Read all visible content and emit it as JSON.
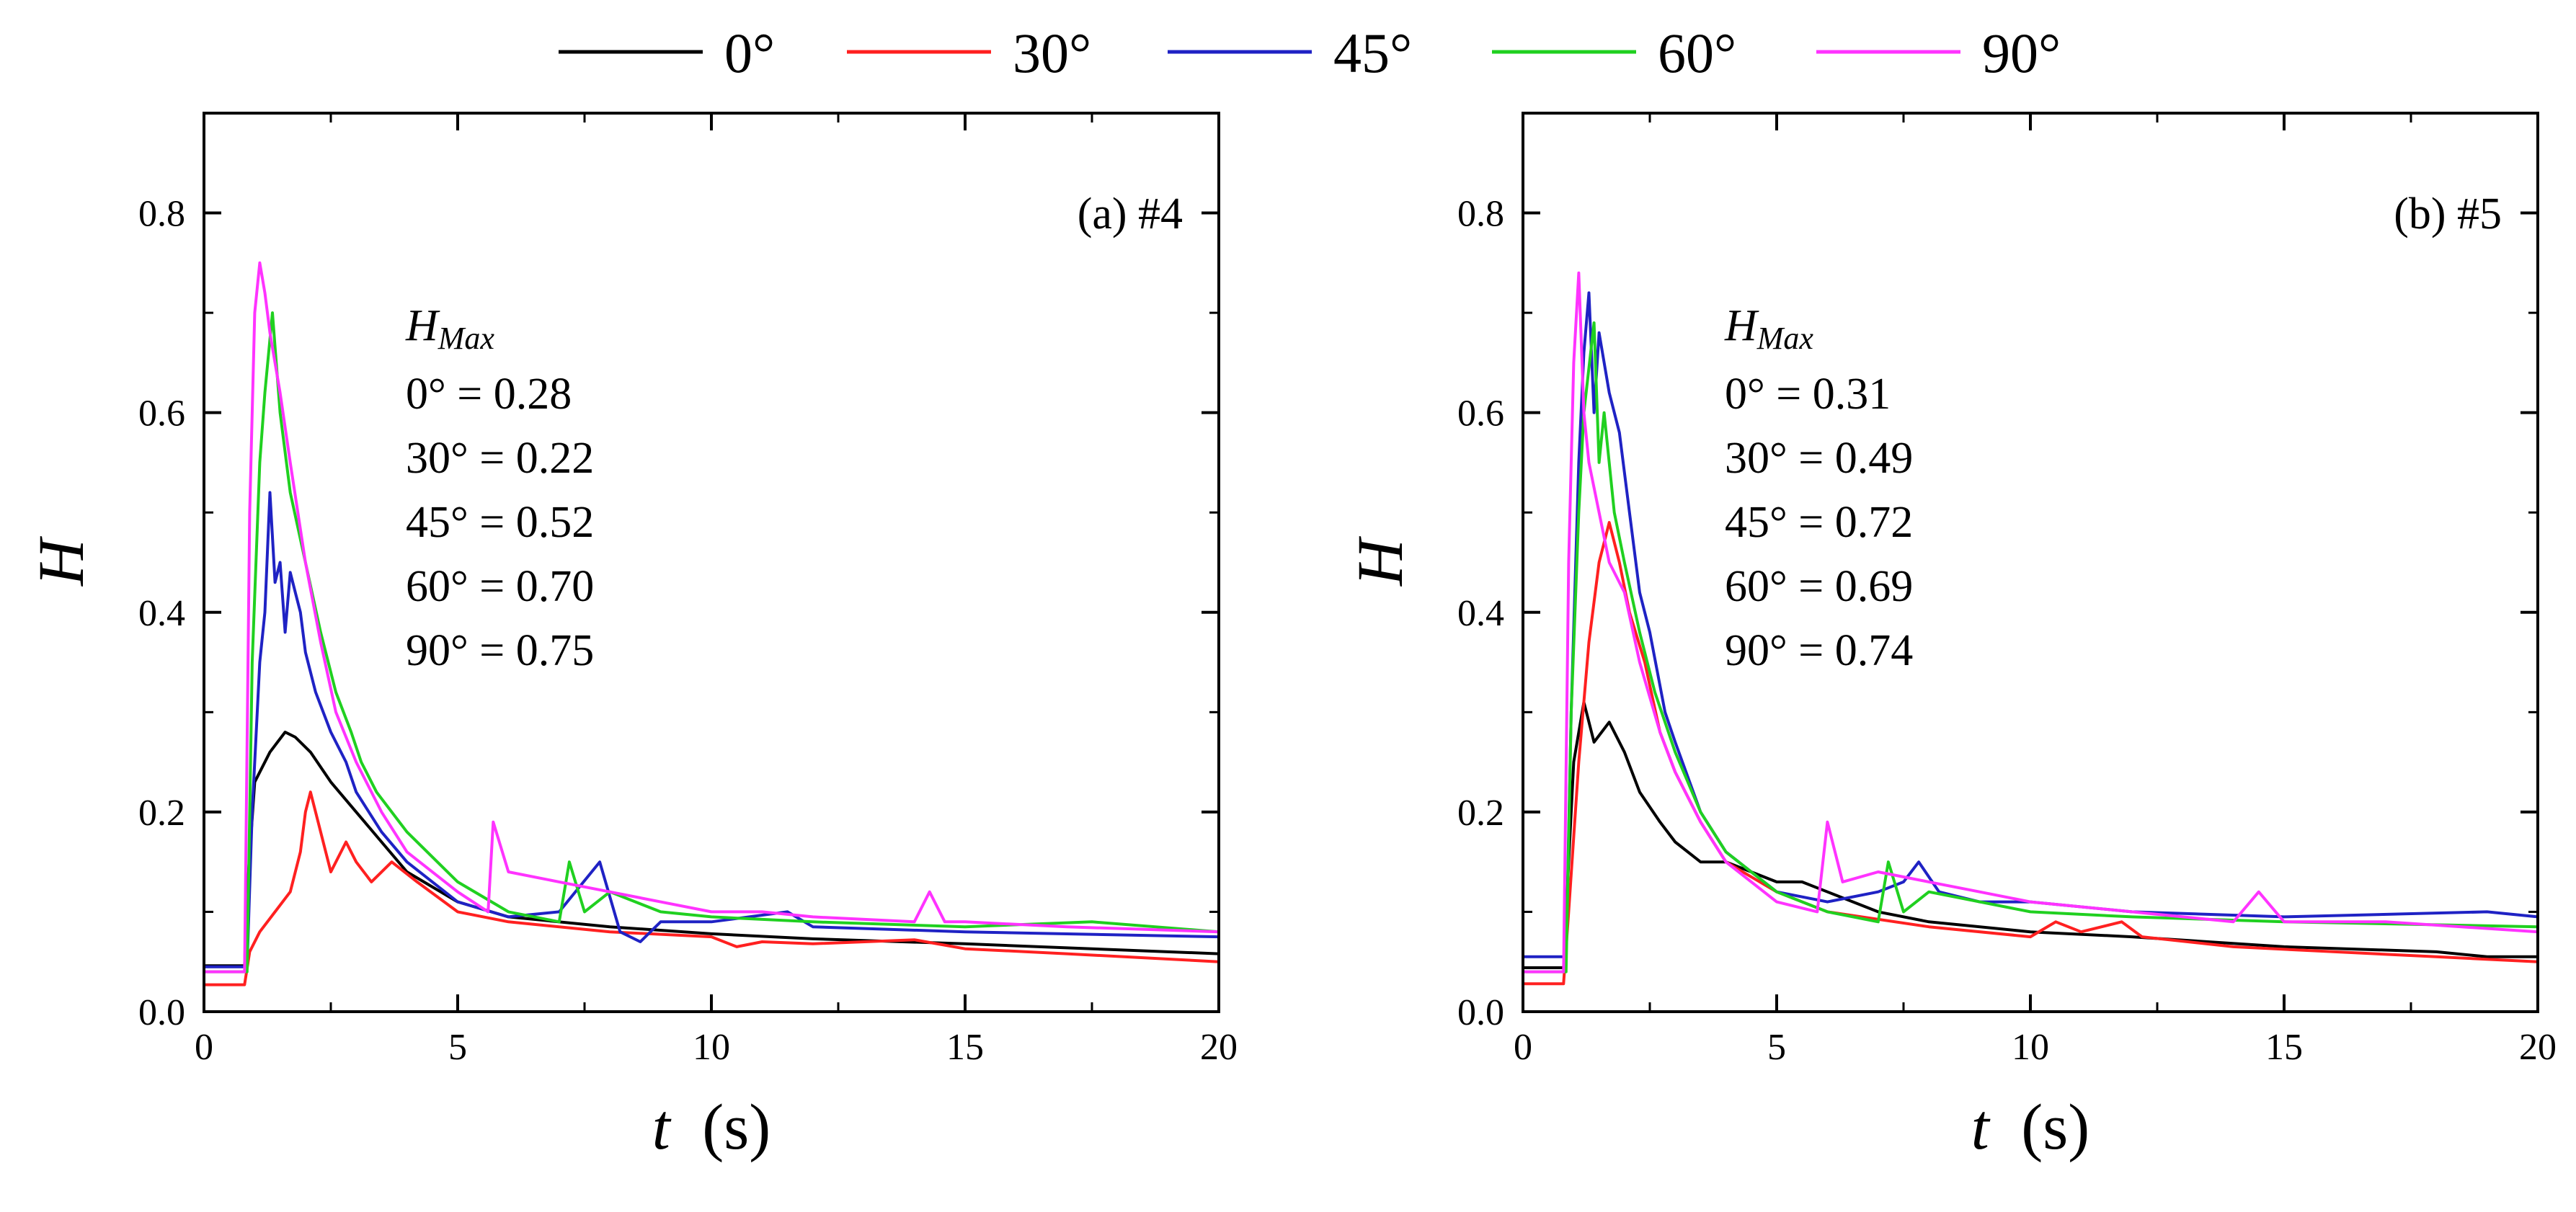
{
  "legend": [
    {
      "label": "0°",
      "color": "#000000"
    },
    {
      "label": "30°",
      "color": "#ff2020"
    },
    {
      "label": "45°",
      "color": "#1f22c4"
    },
    {
      "label": "60°",
      "color": "#20d020"
    },
    {
      "label": "90°",
      "color": "#ff33ff"
    }
  ],
  "chart_data": [
    {
      "type": "line",
      "panel_label": "(a) #4",
      "xlabel_var": "t",
      "xlabel_unit": "(s)",
      "ylabel": "H",
      "xlim": [
        0,
        20
      ],
      "ylim": [
        0,
        0.9
      ],
      "x_ticks": [
        "0",
        "5",
        "10",
        "15",
        "20"
      ],
      "y_ticks": [
        "0.0",
        "0.2",
        "0.4",
        "0.6",
        "0.8"
      ],
      "annotation_title": "H",
      "annotation_sub": "Max",
      "annotation_lines": [
        "0° = 0.28",
        "30° = 0.22",
        "45° = 0.52",
        "60° = 0.70",
        "90° = 0.75"
      ],
      "series": [
        {
          "name": "0°",
          "x": [
            0,
            0.8,
            0.85,
            1.0,
            1.3,
            1.6,
            1.8,
            2.1,
            2.5,
            3.0,
            3.5,
            4.0,
            5,
            6,
            8,
            10,
            12,
            15,
            18,
            20
          ],
          "y": [
            0.046,
            0.046,
            0.12,
            0.23,
            0.26,
            0.28,
            0.275,
            0.26,
            0.23,
            0.2,
            0.17,
            0.14,
            0.11,
            0.095,
            0.085,
            0.078,
            0.073,
            0.068,
            0.062,
            0.058
          ]
        },
        {
          "name": "30°",
          "x": [
            0,
            0.8,
            0.9,
            1.1,
            1.4,
            1.7,
            1.9,
            2.0,
            2.1,
            2.3,
            2.5,
            2.8,
            3.0,
            3.3,
            3.7,
            4.2,
            5,
            6,
            8,
            10,
            10.5,
            11,
            12,
            14,
            15,
            17,
            20
          ],
          "y": [
            0.027,
            0.027,
            0.06,
            0.08,
            0.1,
            0.12,
            0.16,
            0.2,
            0.22,
            0.18,
            0.14,
            0.17,
            0.15,
            0.13,
            0.15,
            0.13,
            0.1,
            0.09,
            0.08,
            0.075,
            0.065,
            0.07,
            0.068,
            0.072,
            0.063,
            0.058,
            0.05
          ]
        },
        {
          "name": "45°",
          "x": [
            0,
            0.85,
            0.95,
            1.1,
            1.2,
            1.3,
            1.4,
            1.5,
            1.6,
            1.7,
            1.8,
            1.9,
            2.0,
            2.2,
            2.5,
            2.8,
            3.0,
            3.5,
            4.0,
            5,
            6,
            7,
            7.8,
            8.2,
            8.6,
            9.0,
            10,
            11.5,
            12,
            15,
            20
          ],
          "y": [
            0.045,
            0.045,
            0.2,
            0.35,
            0.4,
            0.52,
            0.43,
            0.45,
            0.38,
            0.44,
            0.42,
            0.4,
            0.36,
            0.32,
            0.28,
            0.25,
            0.22,
            0.18,
            0.15,
            0.11,
            0.095,
            0.1,
            0.15,
            0.08,
            0.07,
            0.09,
            0.09,
            0.1,
            0.085,
            0.08,
            0.075
          ]
        },
        {
          "name": "60°",
          "x": [
            0,
            0.85,
            0.95,
            1.1,
            1.2,
            1.35,
            1.5,
            1.7,
            2.0,
            2.3,
            2.6,
            2.9,
            3.1,
            3.4,
            4.0,
            5,
            6,
            7,
            7.2,
            7.5,
            8,
            9,
            10,
            12,
            15,
            17.5,
            20
          ],
          "y": [
            0.04,
            0.04,
            0.35,
            0.55,
            0.62,
            0.7,
            0.6,
            0.52,
            0.45,
            0.38,
            0.32,
            0.28,
            0.25,
            0.22,
            0.18,
            0.13,
            0.1,
            0.09,
            0.15,
            0.1,
            0.12,
            0.1,
            0.095,
            0.09,
            0.085,
            0.09,
            0.08
          ]
        },
        {
          "name": "90°",
          "x": [
            0,
            0.8,
            0.9,
            1.0,
            1.1,
            1.2,
            1.3,
            1.5,
            1.7,
            2.0,
            2.3,
            2.6,
            3.0,
            3.5,
            4.0,
            5,
            5.6,
            5.7,
            6.0,
            7,
            8,
            9,
            10,
            11,
            12,
            14,
            14.3,
            14.6,
            15,
            17,
            20
          ],
          "y": [
            0.04,
            0.04,
            0.5,
            0.7,
            0.75,
            0.72,
            0.68,
            0.62,
            0.55,
            0.45,
            0.37,
            0.3,
            0.25,
            0.2,
            0.16,
            0.12,
            0.1,
            0.19,
            0.14,
            0.13,
            0.12,
            0.11,
            0.1,
            0.1,
            0.095,
            0.09,
            0.12,
            0.09,
            0.09,
            0.085,
            0.08
          ]
        }
      ]
    },
    {
      "type": "line",
      "panel_label": "(b) #5",
      "xlabel_var": "t",
      "xlabel_unit": "(s)",
      "ylabel": "H",
      "xlim": [
        0,
        20
      ],
      "ylim": [
        0,
        0.9
      ],
      "x_ticks": [
        "0",
        "5",
        "10",
        "15",
        "20"
      ],
      "y_ticks": [
        "0.0",
        "0.2",
        "0.4",
        "0.6",
        "0.8"
      ],
      "annotation_title": "H",
      "annotation_sub": "Max",
      "annotation_lines": [
        "0° = 0.31",
        "30° = 0.49",
        "45° = 0.72",
        "60° = 0.69",
        "90° = 0.74"
      ],
      "series": [
        {
          "name": "0°",
          "x": [
            0,
            0.8,
            0.9,
            1.0,
            1.2,
            1.4,
            1.7,
            2.0,
            2.3,
            2.7,
            3.0,
            3.5,
            4.0,
            5,
            5.5,
            6,
            7,
            8,
            10,
            12,
            15,
            18,
            19,
            20
          ],
          "y": [
            0.044,
            0.044,
            0.15,
            0.25,
            0.31,
            0.27,
            0.29,
            0.26,
            0.22,
            0.19,
            0.17,
            0.15,
            0.15,
            0.13,
            0.13,
            0.12,
            0.1,
            0.09,
            0.08,
            0.075,
            0.065,
            0.06,
            0.055,
            0.055
          ]
        },
        {
          "name": "30°",
          "x": [
            0,
            0.8,
            0.9,
            1.1,
            1.3,
            1.5,
            1.7,
            1.9,
            2.1,
            2.4,
            2.7,
            3.0,
            3.5,
            4.0,
            5,
            6,
            8,
            10,
            10.5,
            11,
            11.8,
            12.2,
            14,
            16,
            18,
            20
          ],
          "y": [
            0.028,
            0.028,
            0.1,
            0.25,
            0.37,
            0.45,
            0.49,
            0.45,
            0.4,
            0.35,
            0.28,
            0.24,
            0.19,
            0.15,
            0.12,
            0.1,
            0.085,
            0.075,
            0.09,
            0.08,
            0.09,
            0.075,
            0.065,
            0.06,
            0.055,
            0.05
          ]
        },
        {
          "name": "45°",
          "x": [
            0,
            0.85,
            0.95,
            1.1,
            1.2,
            1.3,
            1.4,
            1.5,
            1.7,
            1.9,
            2.1,
            2.3,
            2.5,
            2.8,
            3.0,
            3.5,
            4.0,
            5,
            6,
            7,
            7.5,
            7.8,
            8.2,
            9,
            10,
            12,
            15,
            19,
            20
          ],
          "y": [
            0.055,
            0.055,
            0.3,
            0.55,
            0.66,
            0.72,
            0.6,
            0.68,
            0.62,
            0.58,
            0.5,
            0.42,
            0.38,
            0.3,
            0.27,
            0.2,
            0.16,
            0.12,
            0.11,
            0.12,
            0.13,
            0.15,
            0.12,
            0.11,
            0.11,
            0.1,
            0.095,
            0.1,
            0.095
          ]
        },
        {
          "name": "60°",
          "x": [
            0,
            0.85,
            0.95,
            1.1,
            1.2,
            1.4,
            1.5,
            1.6,
            1.8,
            2.0,
            2.3,
            2.6,
            3.0,
            3.5,
            4.0,
            5,
            6,
            7,
            7.2,
            7.5,
            8,
            9,
            10,
            12,
            15,
            20
          ],
          "y": [
            0.04,
            0.04,
            0.3,
            0.5,
            0.6,
            0.69,
            0.55,
            0.6,
            0.5,
            0.45,
            0.38,
            0.32,
            0.26,
            0.2,
            0.16,
            0.12,
            0.1,
            0.09,
            0.15,
            0.1,
            0.12,
            0.11,
            0.1,
            0.095,
            0.09,
            0.085
          ]
        },
        {
          "name": "90°",
          "x": [
            0,
            0.8,
            0.9,
            1.0,
            1.1,
            1.2,
            1.3,
            1.5,
            1.7,
            2.0,
            2.3,
            2.7,
            3.0,
            3.5,
            4.0,
            5,
            5.8,
            6.0,
            6.3,
            7,
            8,
            9,
            10,
            12,
            14,
            14.5,
            15,
            17,
            20
          ],
          "y": [
            0.04,
            0.04,
            0.45,
            0.65,
            0.74,
            0.6,
            0.55,
            0.5,
            0.45,
            0.42,
            0.35,
            0.28,
            0.24,
            0.19,
            0.15,
            0.11,
            0.1,
            0.19,
            0.13,
            0.14,
            0.13,
            0.12,
            0.11,
            0.1,
            0.09,
            0.12,
            0.09,
            0.09,
            0.08
          ]
        }
      ]
    }
  ]
}
